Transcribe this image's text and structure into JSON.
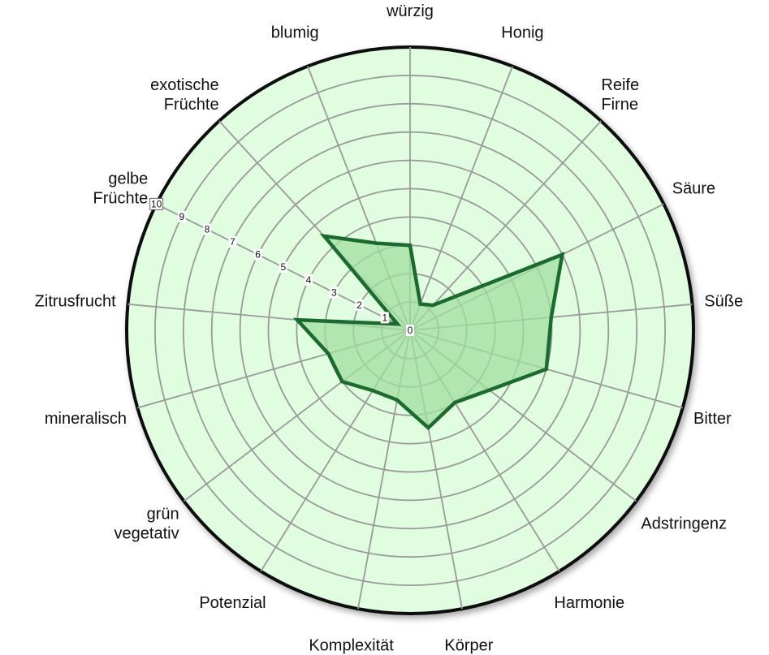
{
  "chart_data": {
    "type": "radar",
    "title": "",
    "rlim": [
      0,
      10
    ],
    "ticks": [
      0,
      1,
      2,
      3,
      4,
      5,
      6,
      7,
      8,
      9,
      10
    ],
    "grid": true,
    "categories": [
      "würzig",
      "Honig",
      "Reife Firne",
      "Säure",
      "Süße",
      "Bitter",
      "Adstringenz",
      "Harmonie",
      "Körper",
      "Komplexität",
      "Potenzial",
      "grün vegetativ",
      "mineralisch",
      "Zitrusfrucht",
      "gelbe Früchte",
      "exotische Früchte",
      "blumig"
    ],
    "series": [
      {
        "values": [
          3,
          1,
          1.2,
          6,
          5,
          5,
          3.5,
          3,
          3.5,
          2.5,
          2.5,
          3,
          3,
          4,
          0.5,
          4.5,
          3.3
        ]
      }
    ]
  },
  "colors": {
    "background_fill": "#e1fde0",
    "outer_ring": "#0a0a0a",
    "grid": "#9a9a9a",
    "series_fill": "#a0dea0",
    "series_line": "#1a6b2e"
  }
}
